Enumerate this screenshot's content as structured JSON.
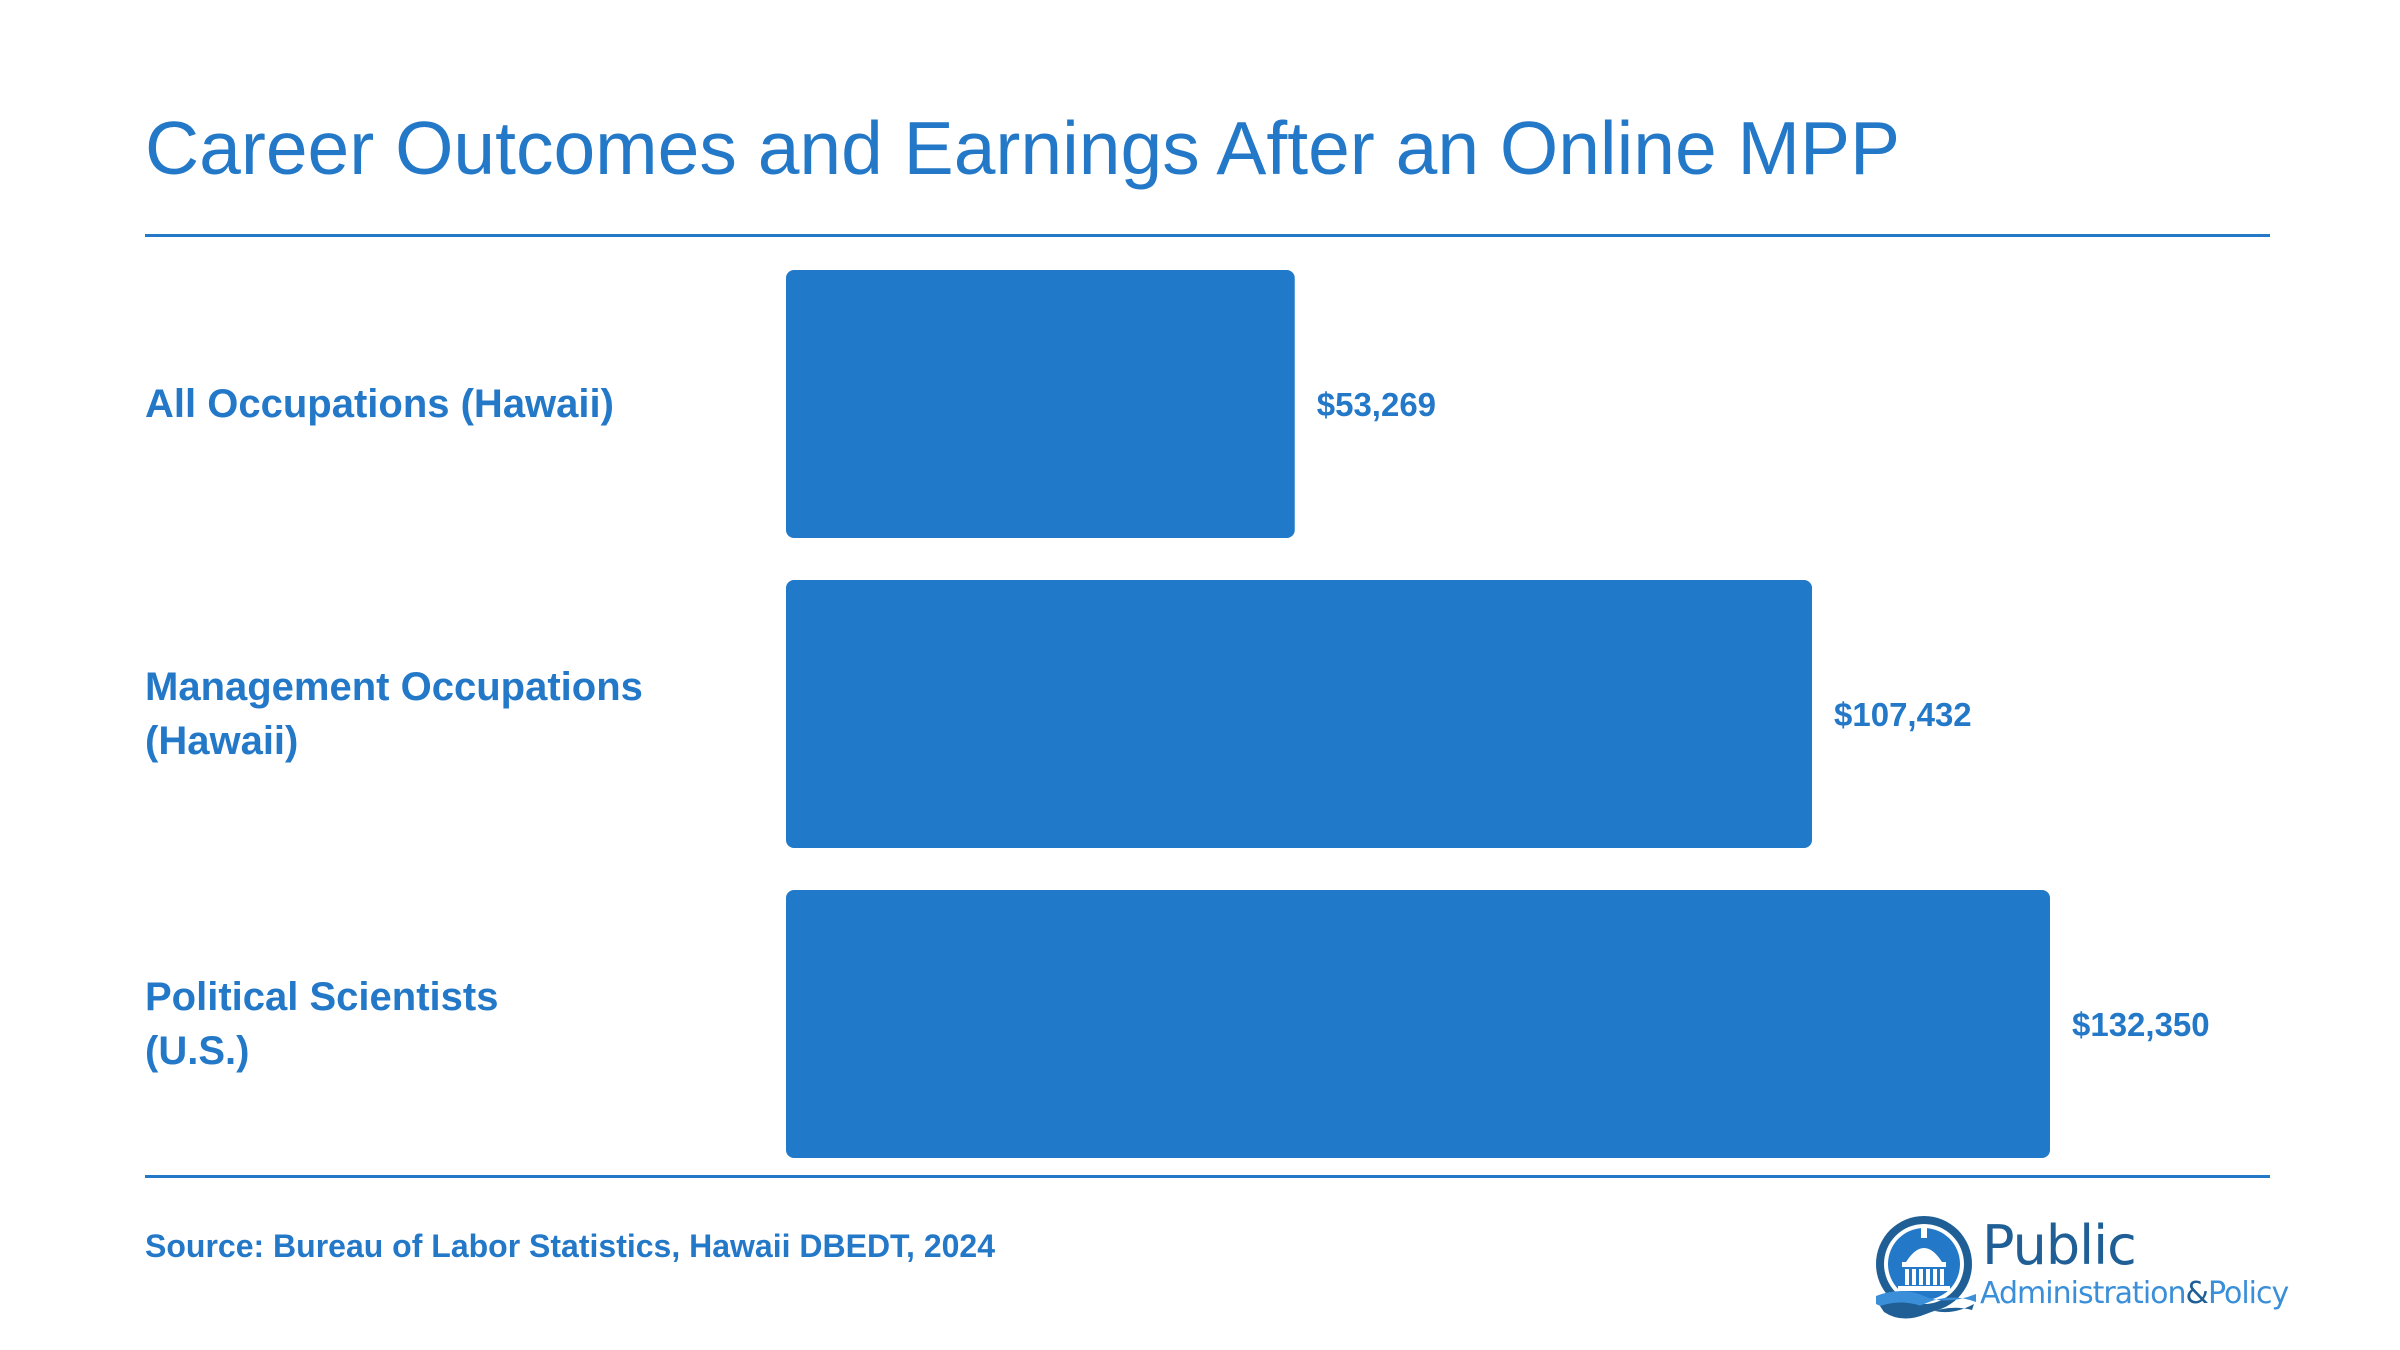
{
  "title": "Career Outcomes and Earnings After an Online MPP",
  "source": "Source: Bureau of Labor Statistics, Hawaii DBEDT, 2024",
  "logo": {
    "line1": "Public",
    "line2_part1": "Administration",
    "line2_amp": "&",
    "line2_part2": "Policy"
  },
  "colors": {
    "accent": "#2478c8",
    "bar": "#2179ca"
  },
  "chart_data": {
    "type": "bar",
    "orientation": "horizontal",
    "categories": [
      "All Occupations (Hawaii)",
      "Management Occupations\n(Hawaii)",
      "Political Scientists\n(U.S.)"
    ],
    "values": [
      53269,
      107432,
      132350
    ],
    "data_labels": [
      "$53,269",
      "$107,432",
      "$132,350"
    ],
    "xlim": [
      0,
      132350
    ],
    "grid": false,
    "legend": "none"
  }
}
